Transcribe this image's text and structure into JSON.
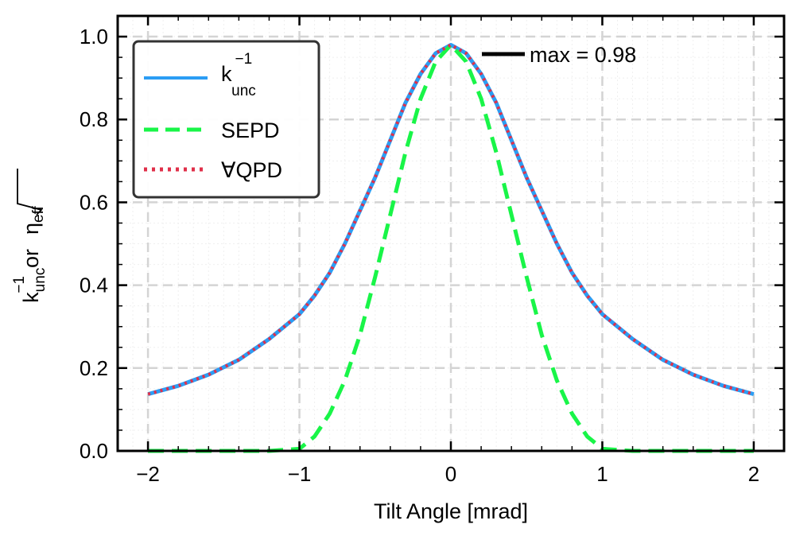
{
  "chart_data": {
    "type": "line",
    "title": "",
    "xlabel": "Tilt Angle [mrad]",
    "ylabel": {
      "part1_base": "k",
      "part1_sup": "−1",
      "part1_sub": "unc",
      "part2": "or",
      "part3_base": "η",
      "part3_sub": "eff"
    },
    "xlim": [
      -2.2,
      2.2
    ],
    "ylim": [
      0.0,
      1.05
    ],
    "xticks": [
      -2,
      -1,
      0,
      1,
      2
    ],
    "xtick_labels": [
      "−2",
      "−1",
      "0",
      "1",
      "2"
    ],
    "yticks": [
      0.0,
      0.2,
      0.4,
      0.6,
      0.8,
      1.0
    ],
    "ytick_labels": [
      "0.0",
      "0.2",
      "0.4",
      "0.6",
      "0.8",
      "1.0"
    ],
    "grid": true,
    "x": [
      -2.0,
      -1.8,
      -1.6,
      -1.4,
      -1.2,
      -1.0,
      -0.9,
      -0.8,
      -0.7,
      -0.6,
      -0.5,
      -0.4,
      -0.3,
      -0.2,
      -0.1,
      0.0,
      0.1,
      0.2,
      0.3,
      0.4,
      0.5,
      0.6,
      0.7,
      0.8,
      0.9,
      1.0,
      1.2,
      1.4,
      1.6,
      1.8,
      2.0
    ],
    "series": [
      {
        "name": "k_unc^-1",
        "label_base": "k",
        "label_sup": "−1",
        "label_sub": "unc",
        "color": "#2b9df4",
        "style": "solid",
        "values": [
          0.137,
          0.157,
          0.184,
          0.22,
          0.27,
          0.33,
          0.375,
          0.43,
          0.5,
          0.58,
          0.66,
          0.75,
          0.84,
          0.91,
          0.96,
          0.98,
          0.96,
          0.91,
          0.84,
          0.75,
          0.66,
          0.58,
          0.5,
          0.43,
          0.375,
          0.33,
          0.27,
          0.22,
          0.184,
          0.157,
          0.137
        ]
      },
      {
        "name": "SEPD",
        "label": "SEPD",
        "color": "#19f548",
        "style": "dashed",
        "values": [
          0.0,
          0.0,
          0.0,
          0.0,
          0.0,
          0.005,
          0.035,
          0.09,
          0.17,
          0.28,
          0.42,
          0.57,
          0.72,
          0.85,
          0.94,
          0.98,
          0.94,
          0.85,
          0.72,
          0.57,
          0.42,
          0.28,
          0.17,
          0.09,
          0.035,
          0.005,
          0.0,
          0.0,
          0.0,
          0.0,
          0.0
        ]
      },
      {
        "name": "∀QPD",
        "label": "∀QPD",
        "color": "#e0304a",
        "style": "dotted",
        "values": [
          0.137,
          0.157,
          0.184,
          0.22,
          0.27,
          0.33,
          0.375,
          0.43,
          0.5,
          0.58,
          0.66,
          0.75,
          0.84,
          0.91,
          0.96,
          0.98,
          0.96,
          0.91,
          0.84,
          0.75,
          0.66,
          0.58,
          0.5,
          0.43,
          0.375,
          0.33,
          0.27,
          0.22,
          0.184,
          0.157,
          0.137
        ]
      }
    ],
    "legend": {
      "position": "top-left"
    },
    "annotation": {
      "text": "max = 0.98",
      "value": 0.98,
      "at_x": 0.0
    }
  }
}
